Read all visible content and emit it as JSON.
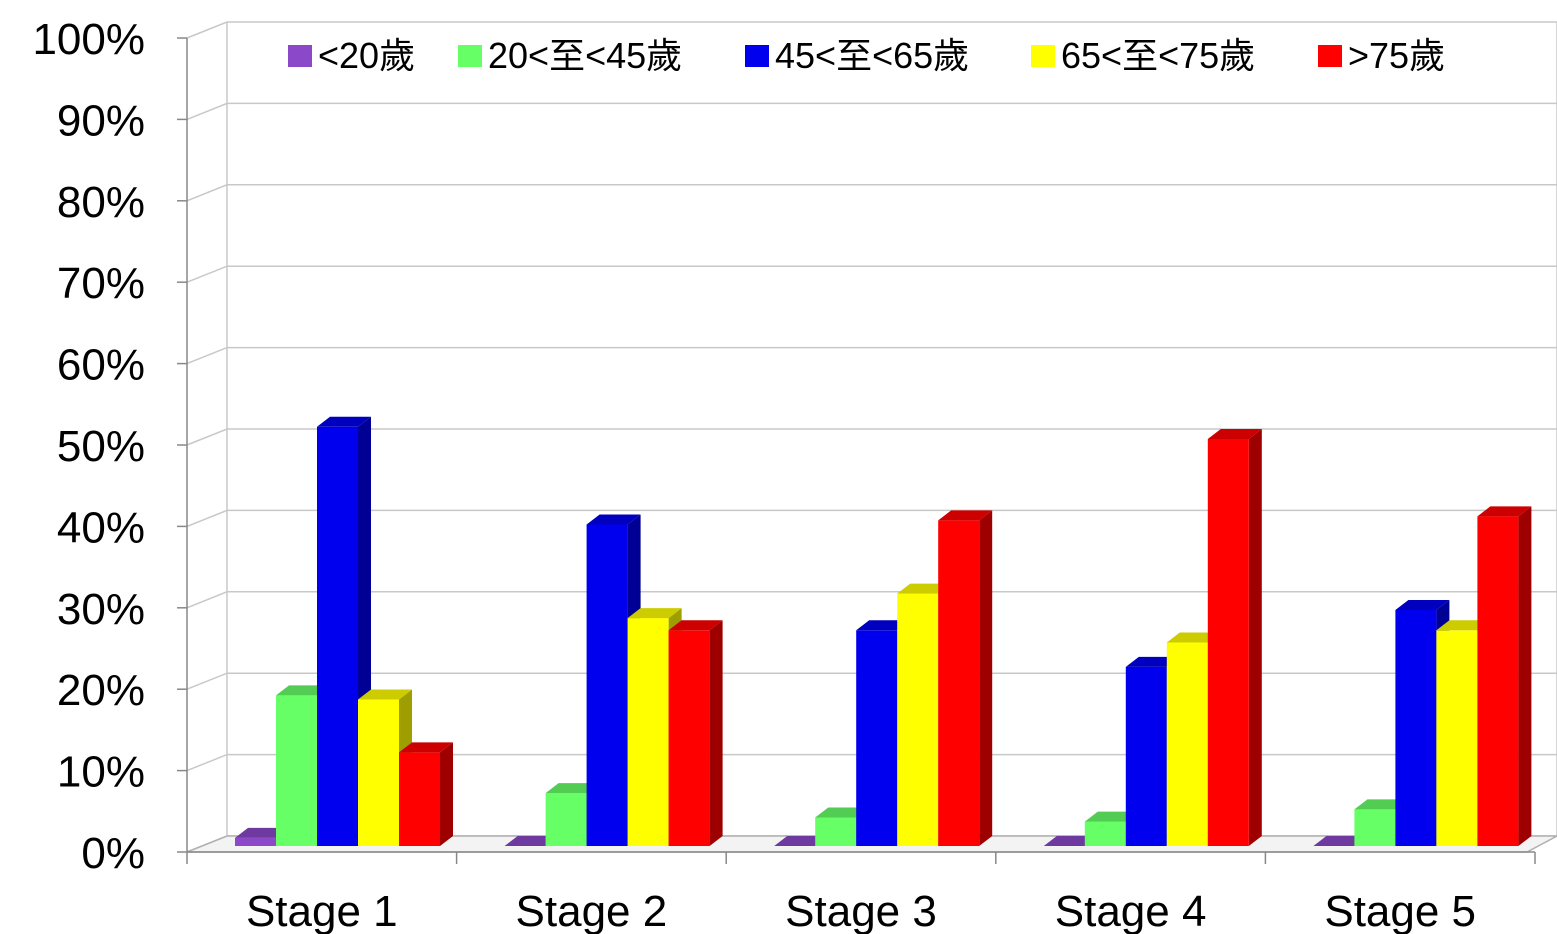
{
  "chart_data": {
    "type": "bar",
    "title": "",
    "xlabel": "",
    "ylabel": "",
    "ylim": [
      0,
      100
    ],
    "yticks": [
      "0%",
      "10%",
      "20%",
      "30%",
      "40%",
      "50%",
      "60%",
      "70%",
      "80%",
      "90%",
      "100%"
    ],
    "categories": [
      "Stage 1",
      "Stage 2",
      "Stage 3",
      "Stage 4",
      "Stage 5"
    ],
    "series": [
      {
        "name": "<20歲",
        "color": "#8B48C8",
        "values": [
          1,
          0,
          0,
          0,
          0
        ]
      },
      {
        "name": "20<至<45歲",
        "color": "#66FF66",
        "values": [
          18.5,
          6.5,
          3.5,
          3,
          4.5
        ]
      },
      {
        "name": "45<至<65歲",
        "color": "#0000EE",
        "values": [
          51.5,
          39.5,
          26.5,
          22,
          29
        ]
      },
      {
        "name": "65<至<75歲",
        "color": "#FFFF00",
        "values": [
          18,
          28,
          31,
          25,
          26.5
        ]
      },
      {
        "name": ">75歲",
        "color": "#FF0000",
        "values": [
          11.5,
          26.5,
          40,
          50,
          40.5
        ]
      }
    ],
    "grid": true,
    "legend_position": "top"
  }
}
